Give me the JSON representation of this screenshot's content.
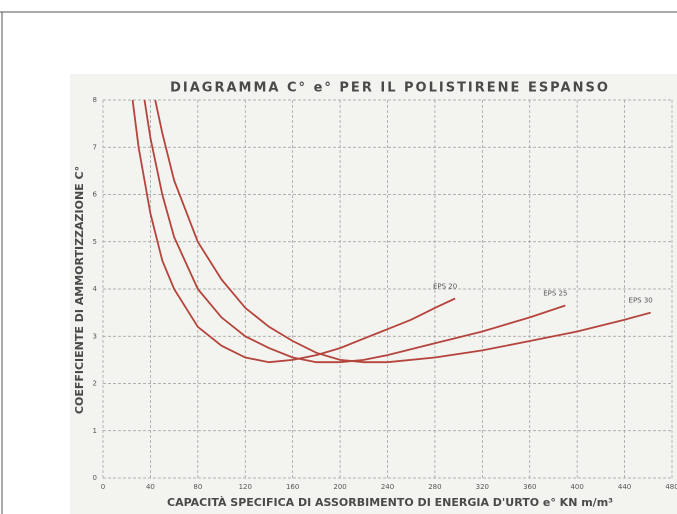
{
  "chart_data": {
    "type": "line",
    "title": "DIAGRAMMA C° e° PER IL POLISTIRENE ESPANSO",
    "x_label": "CAPACITÀ SPECIFICA DI ASSORBIMENTO DI ENERGIA D'URTO e° KN m/m³",
    "y_label": "COEFFICIENTE DI AMMORTIZZAZIONE C°",
    "xlim": [
      0,
      480
    ],
    "xticks": [
      0,
      40,
      80,
      120,
      160,
      200,
      240,
      280,
      320,
      360,
      400,
      440,
      480
    ],
    "ylim": [
      0,
      8
    ],
    "yticks": [
      0,
      1,
      2,
      3,
      4,
      5,
      6,
      7,
      8
    ],
    "grid": true,
    "series": [
      {
        "name": "EPS 20",
        "color": "#b5443c",
        "x": [
          25,
          30,
          40,
          50,
          60,
          80,
          100,
          120,
          140,
          160,
          180,
          200,
          220,
          240,
          260,
          280,
          297
        ],
        "values": [
          8,
          7.0,
          5.6,
          4.6,
          4.0,
          3.2,
          2.8,
          2.55,
          2.45,
          2.5,
          2.6,
          2.75,
          2.95,
          3.15,
          3.35,
          3.6,
          3.8
        ]
      },
      {
        "name": "EPS 25",
        "color": "#b5443c",
        "x": [
          35,
          40,
          50,
          60,
          80,
          100,
          120,
          140,
          160,
          180,
          200,
          220,
          240,
          280,
          320,
          360,
          390
        ],
        "values": [
          8,
          7.2,
          6.0,
          5.1,
          4.0,
          3.4,
          3.0,
          2.75,
          2.55,
          2.45,
          2.45,
          2.5,
          2.6,
          2.85,
          3.1,
          3.4,
          3.65
        ]
      },
      {
        "name": "EPS 30",
        "color": "#b5443c",
        "x": [
          44,
          50,
          60,
          80,
          100,
          120,
          140,
          160,
          180,
          200,
          220,
          240,
          280,
          320,
          360,
          400,
          440,
          462
        ],
        "values": [
          8,
          7.3,
          6.3,
          5.0,
          4.2,
          3.6,
          3.2,
          2.9,
          2.65,
          2.5,
          2.45,
          2.45,
          2.55,
          2.7,
          2.9,
          3.1,
          3.35,
          3.5
        ]
      }
    ]
  }
}
